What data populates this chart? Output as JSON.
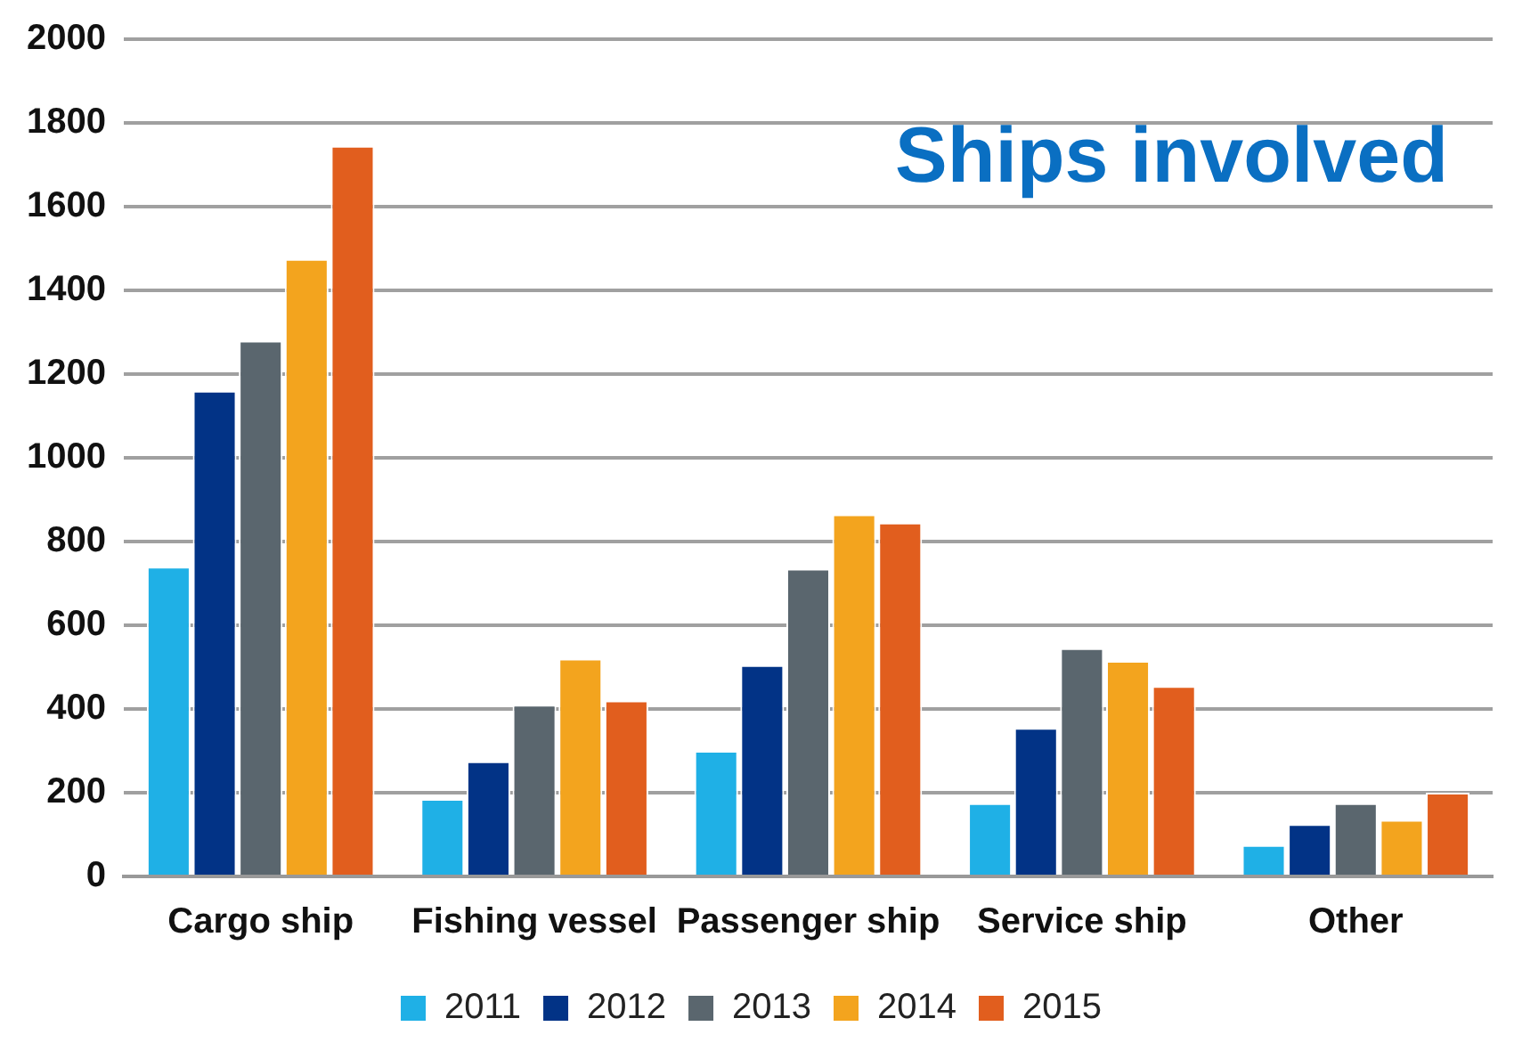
{
  "chart_data": {
    "type": "bar",
    "title": "Ships involved",
    "categories": [
      "Cargo ship",
      "Fishing vessel",
      "Passenger ship",
      "Service ship",
      "Other"
    ],
    "series": [
      {
        "name": "2011",
        "color": "#1fb0e6",
        "values": [
          740,
          185,
          300,
          175,
          75
        ]
      },
      {
        "name": "2012",
        "color": "#023386",
        "values": [
          1160,
          275,
          505,
          355,
          125
        ]
      },
      {
        "name": "2013",
        "color": "#5a666e",
        "values": [
          1280,
          410,
          735,
          545,
          175
        ]
      },
      {
        "name": "2014",
        "color": "#f3a41e",
        "values": [
          1475,
          520,
          865,
          515,
          135
        ]
      },
      {
        "name": "2015",
        "color": "#e15e1e",
        "values": [
          1745,
          420,
          845,
          455,
          200
        ]
      }
    ],
    "ylim": [
      0,
      2000
    ],
    "yticks": [
      0,
      200,
      400,
      600,
      800,
      1000,
      1200,
      1400,
      1600,
      1800,
      2000
    ],
    "grid": "y",
    "legend": "bottom"
  }
}
